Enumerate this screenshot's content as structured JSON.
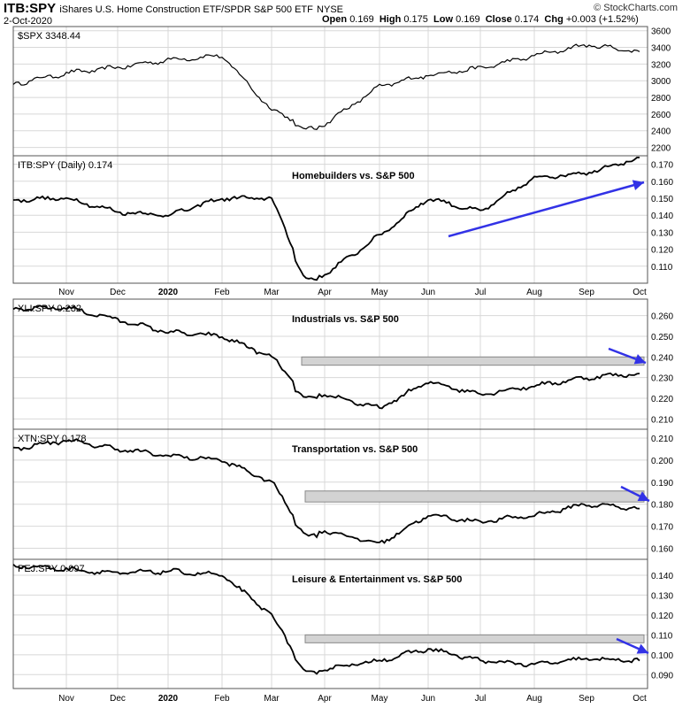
{
  "header": {
    "symbol": "ITB:SPY",
    "description": "iShares U.S. Home Construction ETF/SPDR S&P 500 ETF",
    "exchange": "NYSE",
    "date": "2-Oct-2020",
    "open_label": "Open",
    "open": "0.169",
    "high_label": "High",
    "high": "0.175",
    "low_label": "Low",
    "low": "0.169",
    "close_label": "Close",
    "close": "0.174",
    "chg_label": "Chg",
    "chg": "+0.003 (+1.52%)",
    "brand": "© StockCharts.com"
  },
  "chart_data": [
    {
      "type": "line",
      "legend": "$SPX 3348.44",
      "title": "",
      "x": [
        "Oct",
        "Nov",
        "Dec",
        "Jan",
        "Feb",
        "Mar",
        "Apr",
        "May",
        "Jun",
        "Jul",
        "Aug",
        "Sep",
        "Oct"
      ],
      "values": [
        2960,
        3090,
        3160,
        3250,
        3300,
        2650,
        2480,
        2930,
        3070,
        3150,
        3300,
        3430,
        3350
      ],
      "yticks": [
        2200,
        2400,
        2600,
        2800,
        3000,
        3200,
        3400,
        3600
      ],
      "ylim": [
        2100,
        3650
      ]
    },
    {
      "type": "line",
      "legend": "ITB:SPY (Daily) 0.174",
      "title": "Homebuilders vs. S&P 500",
      "x": [
        "Oct",
        "Nov",
        "Dec",
        "Jan",
        "Feb",
        "Mar",
        "Apr",
        "May",
        "Jun",
        "Jul",
        "Aug",
        "Sep",
        "Oct"
      ],
      "values": [
        0.149,
        0.15,
        0.142,
        0.14,
        0.15,
        0.15,
        0.105,
        0.128,
        0.15,
        0.142,
        0.162,
        0.165,
        0.174
      ],
      "yticks": [
        0.11,
        0.12,
        0.13,
        0.14,
        0.15,
        0.16,
        0.17
      ],
      "ylim": [
        0.1,
        0.175
      ],
      "annotation": "blue uptrend arrow"
    },
    {
      "type": "line",
      "legend": "XLI:SPY 0.232",
      "title": "Industrials vs. S&P 500",
      "x": [
        "Oct",
        "Nov",
        "Dec",
        "Jan",
        "Feb",
        "Mar",
        "Apr",
        "May",
        "Jun",
        "Jul",
        "Aug",
        "Sep",
        "Oct"
      ],
      "values": [
        0.263,
        0.264,
        0.258,
        0.252,
        0.25,
        0.24,
        0.222,
        0.215,
        0.228,
        0.222,
        0.226,
        0.23,
        0.232
      ],
      "yticks": [
        0.21,
        0.22,
        0.23,
        0.24,
        0.25,
        0.26
      ],
      "ylim": [
        0.205,
        0.268
      ],
      "resistance_band": [
        0.236,
        0.24
      ],
      "annotation": "blue down arrow"
    },
    {
      "type": "line",
      "legend": "XTN:SPY 0.178",
      "title": "Transportation vs. S&P 500",
      "x": [
        "Oct",
        "Nov",
        "Dec",
        "Jan",
        "Feb",
        "Mar",
        "Apr",
        "May",
        "Jun",
        "Jul",
        "Aug",
        "Sep",
        "Oct"
      ],
      "values": [
        0.205,
        0.209,
        0.205,
        0.202,
        0.2,
        0.19,
        0.168,
        0.162,
        0.175,
        0.172,
        0.175,
        0.18,
        0.178
      ],
      "yticks": [
        0.16,
        0.17,
        0.18,
        0.19,
        0.2,
        0.21
      ],
      "ylim": [
        0.155,
        0.214
      ],
      "resistance_band": [
        0.181,
        0.186
      ],
      "annotation": "blue down arrow"
    },
    {
      "type": "line",
      "legend": "PEJ:SPY 0.097",
      "title": "Leisure & Entertainment vs. S&P 500",
      "x": [
        "Oct",
        "Nov",
        "Dec",
        "Jan",
        "Feb",
        "Mar",
        "Apr",
        "May",
        "Jun",
        "Jul",
        "Aug",
        "Sep",
        "Oct"
      ],
      "values": [
        0.145,
        0.143,
        0.141,
        0.142,
        0.14,
        0.12,
        0.093,
        0.097,
        0.103,
        0.097,
        0.095,
        0.098,
        0.097
      ],
      "yticks": [
        0.09,
        0.1,
        0.11,
        0.12,
        0.13,
        0.14
      ],
      "ylim": [
        0.083,
        0.148
      ],
      "resistance_band": [
        0.106,
        0.11
      ],
      "annotation": "blue down arrow"
    }
  ],
  "xaxis": {
    "labels": [
      "Nov",
      "Dec",
      "2020",
      "Feb",
      "Mar",
      "Apr",
      "May",
      "Jun",
      "Jul",
      "Aug",
      "Sep",
      "Oct"
    ],
    "bold_label": "2020"
  },
  "colors": {
    "line": "#000000",
    "arrow": "#3232e6",
    "band": "#d3d3d3",
    "grid": "#d8d8d8"
  }
}
